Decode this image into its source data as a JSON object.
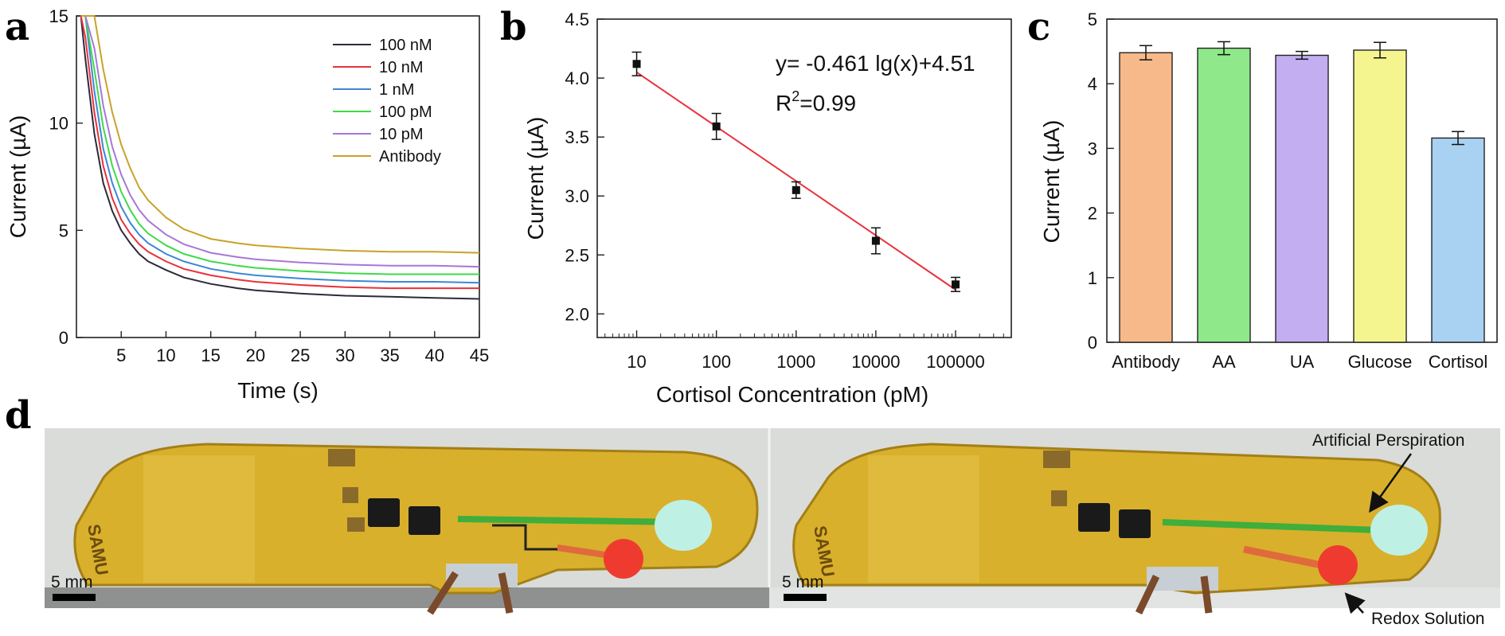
{
  "panels": {
    "a": "a",
    "b": "b",
    "c": "c",
    "d": "d"
  },
  "chart_data": [
    {
      "panel": "a",
      "type": "line",
      "xlabel": "Time (s)",
      "ylabel": "Current (µA)",
      "xlim": [
        0,
        45
      ],
      "ylim": [
        0,
        15
      ],
      "xticks": [
        5,
        10,
        15,
        20,
        25,
        30,
        35,
        40,
        45
      ],
      "yticks": [
        0,
        5,
        10,
        15
      ],
      "legend_position": "top-right",
      "x": [
        0.5,
        1,
        2,
        3,
        4,
        5,
        6,
        7,
        8,
        10,
        12,
        15,
        18,
        20,
        25,
        30,
        35,
        40,
        45
      ],
      "series": [
        {
          "name": "100 nM",
          "color": "#2b2b3a",
          "values": [
            15,
            13,
            9.5,
            7.2,
            5.9,
            5.0,
            4.4,
            3.9,
            3.55,
            3.15,
            2.8,
            2.5,
            2.3,
            2.2,
            2.05,
            1.95,
            1.9,
            1.85,
            1.8
          ]
        },
        {
          "name": "10 nM",
          "color": "#e8323c",
          "values": [
            15,
            14,
            10.5,
            8.0,
            6.5,
            5.5,
            4.85,
            4.35,
            4.0,
            3.55,
            3.2,
            2.9,
            2.7,
            2.6,
            2.45,
            2.35,
            2.3,
            2.3,
            2.3
          ]
        },
        {
          "name": "1 nM",
          "color": "#3a88d6",
          "values": [
            15,
            15,
            11.5,
            8.8,
            7.2,
            6.1,
            5.35,
            4.8,
            4.4,
            3.9,
            3.55,
            3.2,
            3.0,
            2.9,
            2.75,
            2.65,
            2.6,
            2.6,
            2.55
          ]
        },
        {
          "name": "100 pM",
          "color": "#3fd94a",
          "values": [
            15,
            15,
            12.5,
            9.8,
            8.0,
            6.8,
            5.95,
            5.3,
            4.85,
            4.3,
            3.9,
            3.55,
            3.35,
            3.25,
            3.1,
            3.0,
            2.95,
            2.95,
            2.95
          ]
        },
        {
          "name": "10 pM",
          "color": "#a877d6",
          "values": [
            15,
            15,
            13.5,
            10.8,
            8.9,
            7.6,
            6.65,
            5.95,
            5.45,
            4.8,
            4.35,
            3.95,
            3.75,
            3.65,
            3.5,
            3.4,
            3.35,
            3.35,
            3.3
          ]
        },
        {
          "name": "Antibody",
          "color": "#c9a227",
          "values": [
            15,
            15,
            15,
            12.5,
            10.5,
            9.0,
            7.9,
            7.0,
            6.4,
            5.6,
            5.05,
            4.6,
            4.4,
            4.3,
            4.15,
            4.05,
            4.0,
            4.0,
            3.95
          ]
        }
      ]
    },
    {
      "panel": "b",
      "type": "scatter",
      "scale_x": "log",
      "xlabel": "Cortisol Concentration (pM)",
      "ylabel": "Current (µA)",
      "xlim": [
        3.2,
        500000
      ],
      "ylim": [
        1.8,
        4.5
      ],
      "xticks": [
        10,
        100,
        1000,
        10000,
        100000
      ],
      "yticks": [
        2.0,
        2.5,
        3.0,
        3.5,
        4.0,
        4.5
      ],
      "points": [
        {
          "x": 10,
          "y": 4.12,
          "err": 0.1
        },
        {
          "x": 100,
          "y": 3.59,
          "err": 0.11
        },
        {
          "x": 1000,
          "y": 3.05,
          "err": 0.07
        },
        {
          "x": 10000,
          "y": 2.62,
          "err": 0.11
        },
        {
          "x": 100000,
          "y": 2.25,
          "err": 0.06
        }
      ],
      "fit": {
        "slope": -0.461,
        "intercept": 4.51,
        "color": "#e8323c"
      },
      "equation": "y= -0.461 lg(x)+4.51",
      "r2_prefix": "R",
      "r2_sup": "2",
      "r2_suffix": "=0.99"
    },
    {
      "panel": "c",
      "type": "bar",
      "ylabel": "Current (µA)",
      "ylim": [
        0,
        5
      ],
      "yticks": [
        0,
        1,
        2,
        3,
        4,
        5
      ],
      "categories": [
        "Antibody",
        "AA",
        "UA",
        "Glucose",
        "Cortisol"
      ],
      "values": [
        4.48,
        4.55,
        4.44,
        4.52,
        3.16
      ],
      "errors": [
        0.11,
        0.1,
        0.06,
        0.12,
        0.1
      ],
      "colors": [
        "#f7b98a",
        "#8fe88a",
        "#c2aef0",
        "#f5f590",
        "#a9d2f2"
      ]
    }
  ],
  "photo": {
    "scale_bar_label": "5 mm",
    "logo_text": "SAMU",
    "annotation_perspiration": "Artificial Perspiration",
    "annotation_redox": "Redox Solution"
  }
}
